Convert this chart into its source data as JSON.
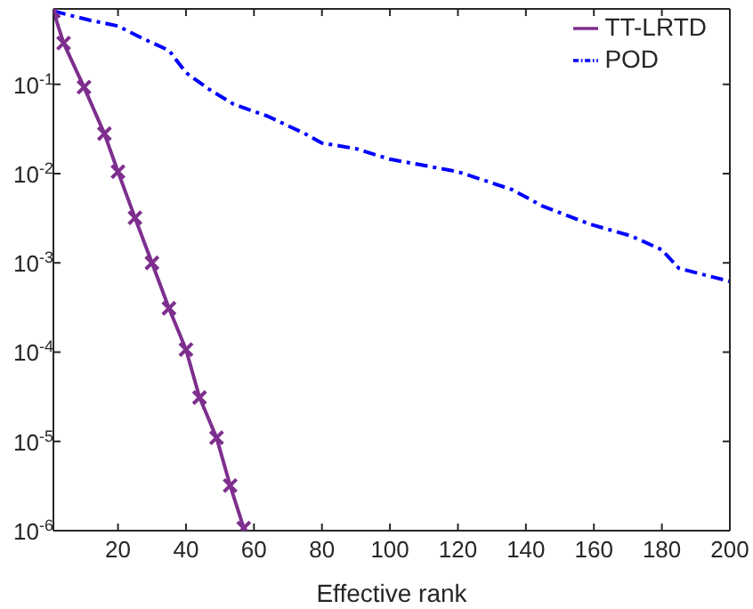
{
  "chart_data": {
    "type": "line",
    "xlabel": "Effective rank",
    "log": "y",
    "grid": false,
    "legend": "top right",
    "xlim": [
      1,
      200
    ],
    "xticks": [
      20,
      40,
      60,
      80,
      100,
      120,
      140,
      160,
      180,
      200
    ],
    "ylim": [
      1e-06,
      0.7
    ],
    "yticks": [
      {
        "value": 1e-06,
        "label": "10$^{-6}$"
      },
      {
        "value": 1e-05,
        "label": "10$^{-5}$"
      },
      {
        "value": 0.0001,
        "label": "10$^{-4}$"
      },
      {
        "value": 0.001,
        "label": "10$^{-3}$"
      },
      {
        "value": 0.01,
        "label": "10$^{-2}$"
      },
      {
        "value": 0.1,
        "label": "10$^{-1}$"
      }
    ],
    "series": [
      {
        "name": "TT-LRTD",
        "color": "#7e2f8e",
        "marker": "cross",
        "line_style": "solid",
        "x": [
          1,
          4,
          10,
          16,
          20,
          25,
          30,
          35,
          40,
          44,
          49,
          53,
          57
        ],
        "values": [
          0.66,
          0.29,
          0.093,
          0.028,
          0.0105,
          0.0032,
          0.001,
          0.00031,
          0.000107,
          3.1e-05,
          1.1e-05,
          3.2e-06,
          1.07e-06
        ]
      },
      {
        "name": "POD",
        "color": "#0000ff",
        "marker": "none",
        "line_style": "dashed",
        "x": [
          1,
          12,
          20,
          27,
          35,
          40,
          47,
          54,
          64,
          75,
          80,
          90,
          100,
          120,
          136,
          145,
          159,
          171,
          180,
          185,
          200
        ],
        "values": [
          0.66,
          0.52,
          0.45,
          0.33,
          0.24,
          0.135,
          0.087,
          0.06,
          0.044,
          0.028,
          0.022,
          0.019,
          0.0145,
          0.0105,
          0.0066,
          0.0043,
          0.0027,
          0.002,
          0.0014,
          0.00087,
          0.00062
        ]
      }
    ]
  }
}
